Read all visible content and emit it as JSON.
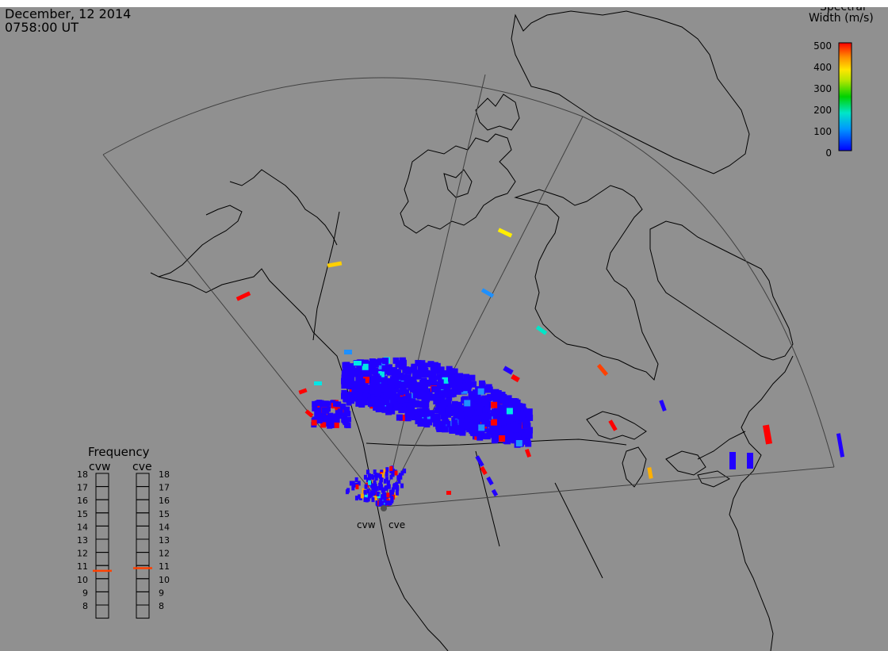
{
  "header": {
    "date": "December, 12 2014",
    "time": "0758:00 UT"
  },
  "colorbar": {
    "title_line1": "Spectral",
    "title_line2": "Width (m/s)",
    "ticks": [
      "500",
      "400",
      "300",
      "200",
      "100",
      "0"
    ],
    "colors": [
      "#0000ff",
      "#0078ff",
      "#00e6e6",
      "#00d200",
      "#8cdc00",
      "#ffff00",
      "#ffc800",
      "#ff8c00",
      "#ff3c00",
      "#ff0000"
    ]
  },
  "radars": {
    "west_label": "cvw",
    "east_label": "cve"
  },
  "frequency": {
    "title": "Frequency",
    "col_left": "cvw",
    "col_right": "cve",
    "levels": [
      "18",
      "17",
      "16",
      "15",
      "14",
      "13",
      "12",
      "11",
      "10",
      "9",
      "8"
    ],
    "cvw_value": 10.6,
    "cve_value": 10.8,
    "marker_color": "#ff4000"
  }
}
